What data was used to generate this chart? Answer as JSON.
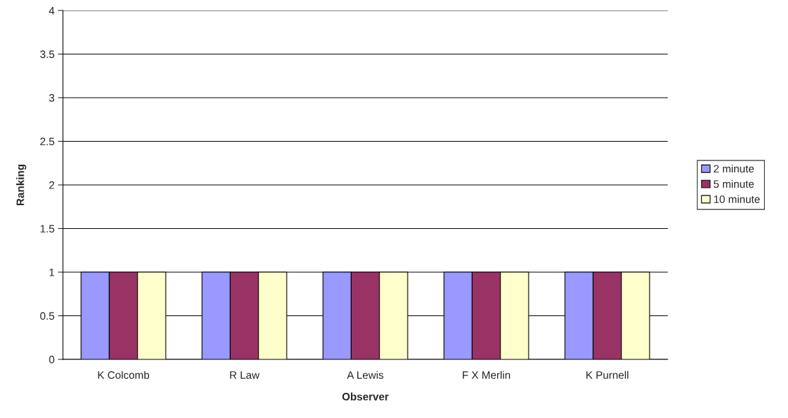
{
  "chart_data": {
    "type": "bar",
    "xlabel": "Observer",
    "ylabel": "Ranking",
    "categories": [
      "K Colcomb",
      "R Law",
      "A Lewis",
      "F X Merlin",
      "K Purnell"
    ],
    "series": [
      {
        "name": "2 minute",
        "color": "#9999ff",
        "values": [
          1,
          1,
          1,
          1,
          1
        ]
      },
      {
        "name": "5 minute",
        "color": "#993366",
        "values": [
          1,
          1,
          1,
          1,
          1
        ]
      },
      {
        "name": "10 minute",
        "color": "#ffffcc",
        "values": [
          1,
          1,
          1,
          1,
          1
        ]
      }
    ],
    "ylim": [
      0,
      4
    ],
    "yticks": [
      0,
      0.5,
      1,
      1.5,
      2,
      2.5,
      3,
      3.5,
      4
    ],
    "grid": "y",
    "legend": "right"
  }
}
